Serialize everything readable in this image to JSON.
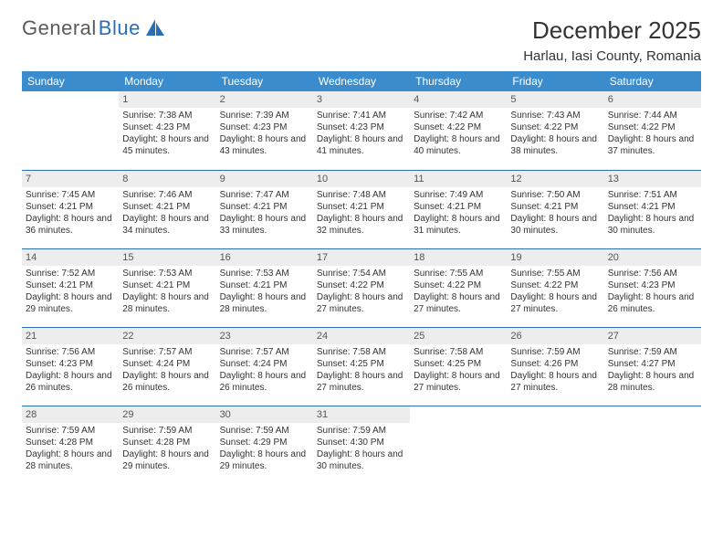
{
  "logo": {
    "part1": "General",
    "part2": "Blue"
  },
  "title": "December 2025",
  "location": "Harlau, Iasi County, Romania",
  "colors": {
    "header_bg": "#3b8ccd",
    "header_text": "#ffffff",
    "daynum_bg": "#ededed",
    "rule": "#2a6fb3",
    "logo_gray": "#5a5a5a",
    "logo_blue": "#2a6fb3"
  },
  "day_names": [
    "Sunday",
    "Monday",
    "Tuesday",
    "Wednesday",
    "Thursday",
    "Friday",
    "Saturday"
  ],
  "weeks": [
    [
      {
        "n": "",
        "sunrise": "",
        "sunset": "",
        "daylight": ""
      },
      {
        "n": "1",
        "sunrise": "Sunrise: 7:38 AM",
        "sunset": "Sunset: 4:23 PM",
        "daylight": "Daylight: 8 hours and 45 minutes."
      },
      {
        "n": "2",
        "sunrise": "Sunrise: 7:39 AM",
        "sunset": "Sunset: 4:23 PM",
        "daylight": "Daylight: 8 hours and 43 minutes."
      },
      {
        "n": "3",
        "sunrise": "Sunrise: 7:41 AM",
        "sunset": "Sunset: 4:23 PM",
        "daylight": "Daylight: 8 hours and 41 minutes."
      },
      {
        "n": "4",
        "sunrise": "Sunrise: 7:42 AM",
        "sunset": "Sunset: 4:22 PM",
        "daylight": "Daylight: 8 hours and 40 minutes."
      },
      {
        "n": "5",
        "sunrise": "Sunrise: 7:43 AM",
        "sunset": "Sunset: 4:22 PM",
        "daylight": "Daylight: 8 hours and 38 minutes."
      },
      {
        "n": "6",
        "sunrise": "Sunrise: 7:44 AM",
        "sunset": "Sunset: 4:22 PM",
        "daylight": "Daylight: 8 hours and 37 minutes."
      }
    ],
    [
      {
        "n": "7",
        "sunrise": "Sunrise: 7:45 AM",
        "sunset": "Sunset: 4:21 PM",
        "daylight": "Daylight: 8 hours and 36 minutes."
      },
      {
        "n": "8",
        "sunrise": "Sunrise: 7:46 AM",
        "sunset": "Sunset: 4:21 PM",
        "daylight": "Daylight: 8 hours and 34 minutes."
      },
      {
        "n": "9",
        "sunrise": "Sunrise: 7:47 AM",
        "sunset": "Sunset: 4:21 PM",
        "daylight": "Daylight: 8 hours and 33 minutes."
      },
      {
        "n": "10",
        "sunrise": "Sunrise: 7:48 AM",
        "sunset": "Sunset: 4:21 PM",
        "daylight": "Daylight: 8 hours and 32 minutes."
      },
      {
        "n": "11",
        "sunrise": "Sunrise: 7:49 AM",
        "sunset": "Sunset: 4:21 PM",
        "daylight": "Daylight: 8 hours and 31 minutes."
      },
      {
        "n": "12",
        "sunrise": "Sunrise: 7:50 AM",
        "sunset": "Sunset: 4:21 PM",
        "daylight": "Daylight: 8 hours and 30 minutes."
      },
      {
        "n": "13",
        "sunrise": "Sunrise: 7:51 AM",
        "sunset": "Sunset: 4:21 PM",
        "daylight": "Daylight: 8 hours and 30 minutes."
      }
    ],
    [
      {
        "n": "14",
        "sunrise": "Sunrise: 7:52 AM",
        "sunset": "Sunset: 4:21 PM",
        "daylight": "Daylight: 8 hours and 29 minutes."
      },
      {
        "n": "15",
        "sunrise": "Sunrise: 7:53 AM",
        "sunset": "Sunset: 4:21 PM",
        "daylight": "Daylight: 8 hours and 28 minutes."
      },
      {
        "n": "16",
        "sunrise": "Sunrise: 7:53 AM",
        "sunset": "Sunset: 4:21 PM",
        "daylight": "Daylight: 8 hours and 28 minutes."
      },
      {
        "n": "17",
        "sunrise": "Sunrise: 7:54 AM",
        "sunset": "Sunset: 4:22 PM",
        "daylight": "Daylight: 8 hours and 27 minutes."
      },
      {
        "n": "18",
        "sunrise": "Sunrise: 7:55 AM",
        "sunset": "Sunset: 4:22 PM",
        "daylight": "Daylight: 8 hours and 27 minutes."
      },
      {
        "n": "19",
        "sunrise": "Sunrise: 7:55 AM",
        "sunset": "Sunset: 4:22 PM",
        "daylight": "Daylight: 8 hours and 27 minutes."
      },
      {
        "n": "20",
        "sunrise": "Sunrise: 7:56 AM",
        "sunset": "Sunset: 4:23 PM",
        "daylight": "Daylight: 8 hours and 26 minutes."
      }
    ],
    [
      {
        "n": "21",
        "sunrise": "Sunrise: 7:56 AM",
        "sunset": "Sunset: 4:23 PM",
        "daylight": "Daylight: 8 hours and 26 minutes."
      },
      {
        "n": "22",
        "sunrise": "Sunrise: 7:57 AM",
        "sunset": "Sunset: 4:24 PM",
        "daylight": "Daylight: 8 hours and 26 minutes."
      },
      {
        "n": "23",
        "sunrise": "Sunrise: 7:57 AM",
        "sunset": "Sunset: 4:24 PM",
        "daylight": "Daylight: 8 hours and 26 minutes."
      },
      {
        "n": "24",
        "sunrise": "Sunrise: 7:58 AM",
        "sunset": "Sunset: 4:25 PM",
        "daylight": "Daylight: 8 hours and 27 minutes."
      },
      {
        "n": "25",
        "sunrise": "Sunrise: 7:58 AM",
        "sunset": "Sunset: 4:25 PM",
        "daylight": "Daylight: 8 hours and 27 minutes."
      },
      {
        "n": "26",
        "sunrise": "Sunrise: 7:59 AM",
        "sunset": "Sunset: 4:26 PM",
        "daylight": "Daylight: 8 hours and 27 minutes."
      },
      {
        "n": "27",
        "sunrise": "Sunrise: 7:59 AM",
        "sunset": "Sunset: 4:27 PM",
        "daylight": "Daylight: 8 hours and 28 minutes."
      }
    ],
    [
      {
        "n": "28",
        "sunrise": "Sunrise: 7:59 AM",
        "sunset": "Sunset: 4:28 PM",
        "daylight": "Daylight: 8 hours and 28 minutes."
      },
      {
        "n": "29",
        "sunrise": "Sunrise: 7:59 AM",
        "sunset": "Sunset: 4:28 PM",
        "daylight": "Daylight: 8 hours and 29 minutes."
      },
      {
        "n": "30",
        "sunrise": "Sunrise: 7:59 AM",
        "sunset": "Sunset: 4:29 PM",
        "daylight": "Daylight: 8 hours and 29 minutes."
      },
      {
        "n": "31",
        "sunrise": "Sunrise: 7:59 AM",
        "sunset": "Sunset: 4:30 PM",
        "daylight": "Daylight: 8 hours and 30 minutes."
      },
      {
        "n": "",
        "sunrise": "",
        "sunset": "",
        "daylight": ""
      },
      {
        "n": "",
        "sunrise": "",
        "sunset": "",
        "daylight": ""
      },
      {
        "n": "",
        "sunrise": "",
        "sunset": "",
        "daylight": ""
      }
    ]
  ]
}
